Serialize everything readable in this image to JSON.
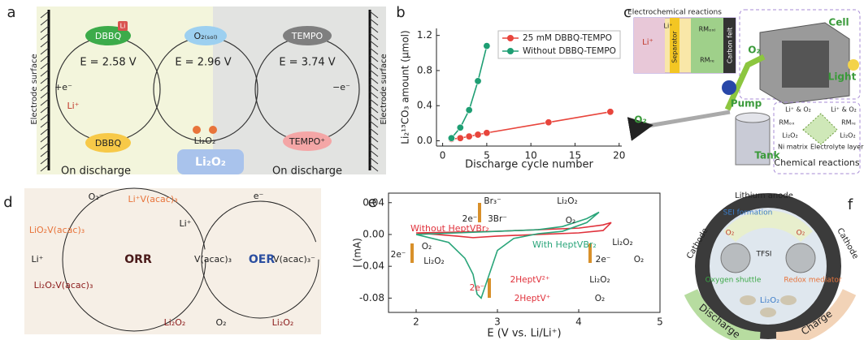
{
  "panel_labels": [
    "a",
    "b",
    "c",
    "d",
    "e",
    "f"
  ],
  "panel_a": {
    "electrode_left": "Electrode surface",
    "electrode_right": "Electrode surface",
    "dbbq_top": "DBBQ",
    "li_badge": "Li",
    "e_dbbq": "E = 2.58 V",
    "o2_sol": "O₂₍ₛₒₗ₎",
    "e_o2": "E = 2.96 V",
    "tempo": "TEMPO",
    "e_tempo": "E = 3.74 V",
    "plus_e": "+e⁻",
    "li_plus": "Li⁺",
    "minus_e": "−e⁻",
    "dbbq_bottom": "DBBQ",
    "li2o2_small": "Li₂O₂",
    "li2o2_big": "Li₂O₂",
    "tempo_plus": "TEMPO⁺",
    "discharge_left": "On discharge",
    "discharge_right": "On discharge"
  },
  "panel_c": {
    "title_electrochem": "Electrochemical reactions",
    "li_plus_big": "Li⁺",
    "li_plus_small": "Li⁺",
    "separator": "Separator",
    "rm_ox": "RMₒₓᵢ",
    "rm_red": "RMᵣₑ",
    "carbon_felt": "Carbon felt",
    "cell": "Cell",
    "o2_top": "O₂",
    "light": "Light",
    "pump": "Pump",
    "o2_left": "O₂",
    "tank": "Tank",
    "li_o2_left": "Li⁺ & O₂",
    "li_o2_right": "Li⁺ & O₂",
    "rm_ox_chem": "RMₒₓ",
    "rm_red_chem": "RMᵣₑ",
    "li2o2_left": "Li₂O₂",
    "li2o2_right": "Li₂O₂",
    "ni_matrix": "Ni matrix",
    "electrolyte_layer": "Electrolyte layer",
    "chemical_reactions": "Chemical reactions"
  },
  "panel_d": {
    "o2_minus": "O₂⁻",
    "li_v": "Li⁺V(acac)₃",
    "lio2_v": "LiO₂V(acac)₃",
    "li_plus_1": "Li⁺",
    "orr": "ORR",
    "li_plus_2": "Li⁺",
    "v_acac": "V(acac)₃",
    "li2o2_v": "Li₂O₂V(acac)₃",
    "li2o2_1": "Li₂O₂",
    "e_minus": "e⁻",
    "oer": "OER",
    "v_acac_minus": "V(acac)₃⁻",
    "o2": "O₂",
    "li2o2_2": "Li₂O₂"
  },
  "panel_f": {
    "lithium_anode": "Lithium anode",
    "sei": "SEI formation",
    "cathode_left": "Cathode",
    "cathode_right": "Cathode",
    "tfsi": "TFSI",
    "o2_l": "O₂",
    "o2_r": "O₂",
    "oxygen_shuttle": "Oxygen shuttle",
    "redox_mediator": "Redox mediator",
    "discharge": "Discharge",
    "charge": "Charge",
    "li2o2": "Li₂O₂"
  },
  "chart_data": [
    {
      "type": "line",
      "markers": true,
      "legend": "upper right",
      "x_label": "Discharge cycle number",
      "y_label": "Li₂¹³CO₃ amount (μmol)",
      "xlim": [
        -0.7,
        20.3
      ],
      "xticks": [
        0,
        5,
        10,
        15,
        20
      ],
      "ylim": [
        -0.06,
        1.28
      ],
      "yticks": [
        {
          "value": 0,
          "label": "0.0"
        },
        0.4,
        0.8,
        1.2
      ],
      "series": [
        {
          "name": "25 mM DBBQ-TEMPO",
          "color": "#e8453c",
          "x": [
            1,
            2,
            3,
            4,
            5,
            12,
            19
          ],
          "values": [
            0.02,
            0.03,
            0.05,
            0.07,
            0.09,
            0.21,
            0.33
          ]
        },
        {
          "name": "Without DBBQ-TEMPO",
          "color": "#1e9e73",
          "x": [
            1,
            2,
            3,
            4,
            5
          ],
          "values": [
            0.03,
            0.15,
            0.35,
            0.68,
            1.08
          ]
        }
      ]
    },
    {
      "type": "line",
      "markers": false,
      "x_label": "E (V vs. Li/Li⁺)",
      "y_label": "I (mA)",
      "xlim": [
        1.66,
        5
      ],
      "xticks": [
        2,
        3,
        4,
        5
      ],
      "ylim": [
        -0.098,
        0.052
      ],
      "yticks": [
        0.04,
        {
          "value": 0,
          "label": "0.00"
        },
        -0.04,
        -0.08
      ],
      "series": [
        {
          "name": "Without HeptVBr₂",
          "color": "#e0313b",
          "x": [
            2.0,
            2.5,
            3.0,
            3.5,
            4.0,
            4.3,
            4.4,
            4.3,
            4.0,
            3.5,
            3.0,
            2.7,
            2.5,
            2.0
          ],
          "values": [
            0.002,
            0.003,
            0.004,
            0.006,
            0.008,
            0.012,
            0.015,
            0.005,
            0.002,
            0.0,
            -0.002,
            -0.004,
            -0.002,
            0.002
          ]
        },
        {
          "name": "With HeptVBr₂",
          "color": "#2aa57a",
          "x": [
            2.0,
            2.5,
            3.0,
            3.5,
            3.8,
            4.1,
            4.25,
            4.1,
            3.8,
            3.5,
            3.2,
            3.0,
            2.9,
            2.8,
            2.75,
            2.7,
            2.6,
            2.4,
            2.0
          ],
          "values": [
            0,
            0.002,
            0.004,
            0.006,
            0.01,
            0.02,
            0.028,
            0.015,
            0.004,
            0.001,
            -0.005,
            -0.02,
            -0.05,
            -0.08,
            -0.075,
            -0.05,
            -0.03,
            -0.01,
            0
          ]
        }
      ],
      "annotations": [
        "Br₃⁻",
        "Li₂O₂",
        "2e⁻",
        "3Br⁻",
        "O₂",
        "2e⁻",
        "O₂",
        "Li₂O₂",
        "Li₂O₂",
        "2e⁻",
        "O₂",
        "2e⁻",
        "2HeptV²⁺",
        "2HeptV⁺",
        "Li₂O₂",
        "O₂"
      ]
    }
  ]
}
